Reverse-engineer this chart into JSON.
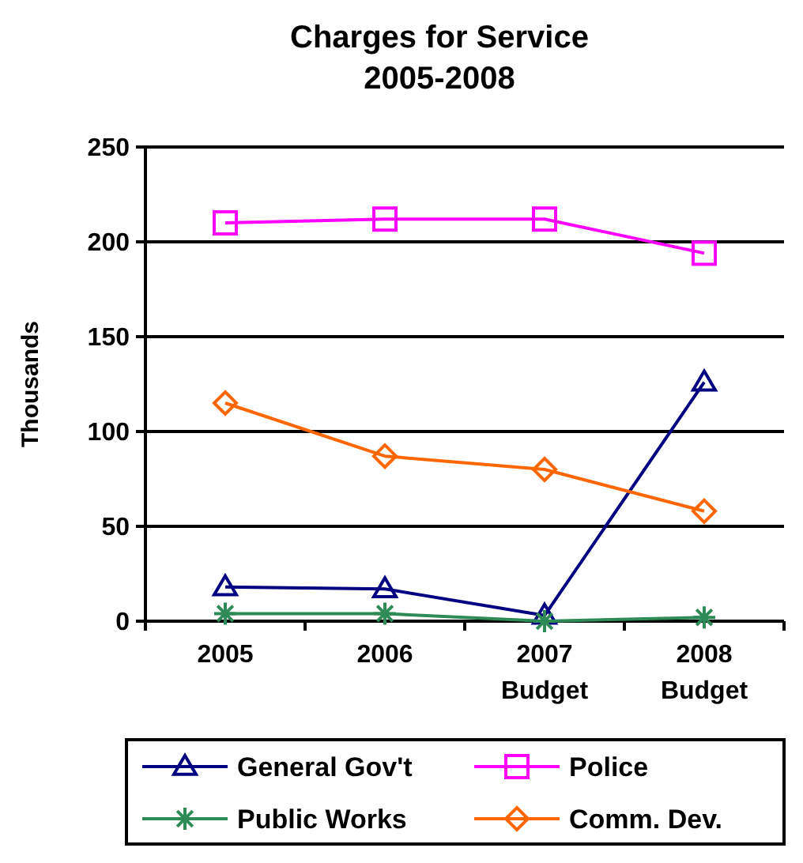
{
  "chart_data": {
    "type": "line",
    "title": "Charges for Service\n2005-2008",
    "ylabel": "Thousands",
    "categories": [
      "2005",
      "2006",
      "2007\nBudget",
      "2008\nBudget"
    ],
    "ylim": [
      0,
      250
    ],
    "yticks": [
      0,
      50,
      100,
      150,
      200,
      250
    ],
    "grid": "y",
    "legend": "bottom",
    "series": [
      {
        "name": "General Gov't",
        "color": "#000080",
        "marker": "triangle",
        "values": [
          18,
          17,
          3,
          126
        ]
      },
      {
        "name": "Police",
        "color": "#ff00ff",
        "marker": "square",
        "values": [
          210,
          212,
          212,
          194
        ]
      },
      {
        "name": "Public Works",
        "color": "#2e8b57",
        "marker": "cross",
        "values": [
          4,
          4,
          0,
          2
        ]
      },
      {
        "name": "Comm. Dev.",
        "color": "#ff6600",
        "marker": "diamond",
        "values": [
          115,
          87,
          80,
          58
        ]
      }
    ]
  }
}
